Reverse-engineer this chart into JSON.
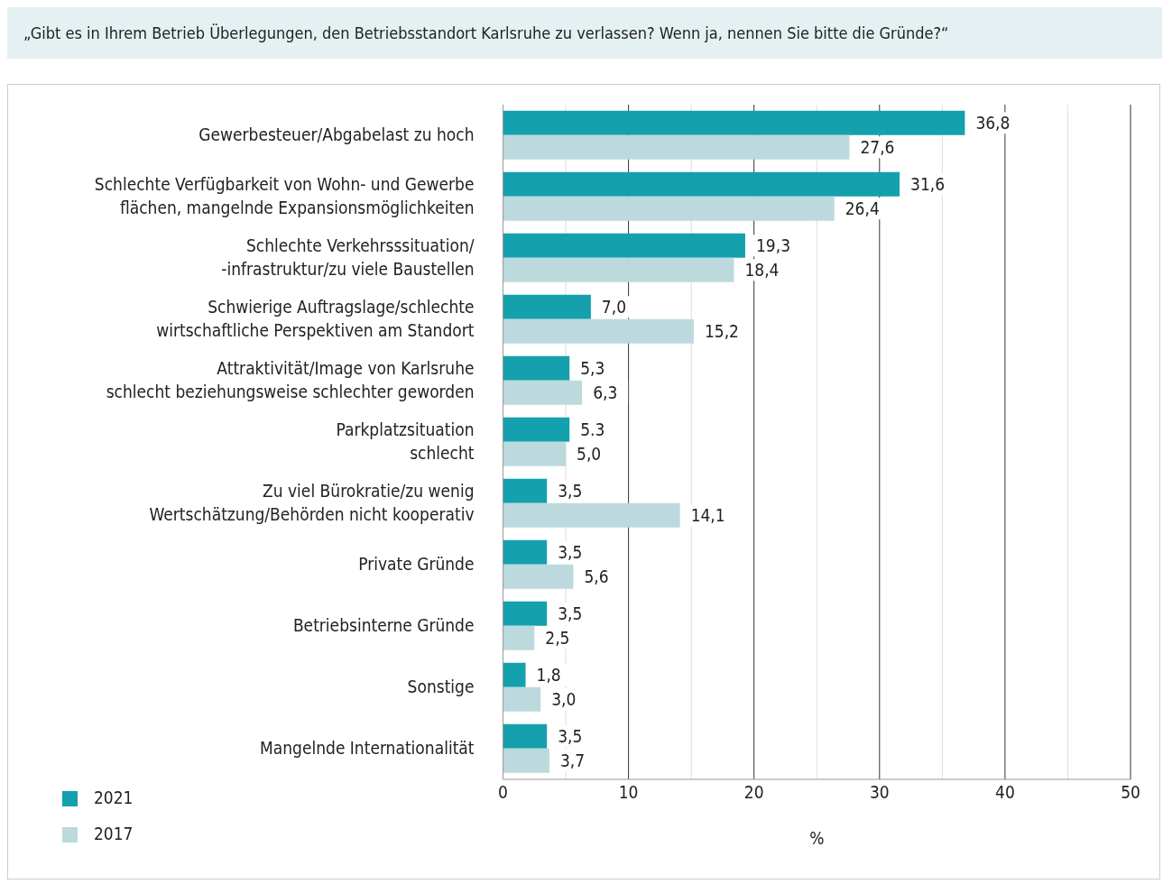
{
  "chart_data": {
    "type": "bar",
    "orientation": "horizontal",
    "title": "„Gibt es in Ihrem Betrieb Überlegungen, den Betriebsstandort Karlsruhe zu verlassen? Wenn ja, nennen Sie bitte die Gründe?“",
    "xlabel": "%",
    "categories": [
      "Gewerbesteuer/Abgabelast zu hoch",
      "Schlechte Verfügbarkeit von Wohn- und Gewerbe\nflächen, mangelnde  Expansionsmöglichkeiten",
      "Schlechte Verkehrsssituation/\n-infrastruktur/zu viele Baustellen",
      "Schwierige Auftragslage/schlechte\nwirtschaftliche Perspektiven am Standort",
      "Attraktivität/Image von Karlsruhe\nschlecht beziehungsweise schlechter geworden",
      "Parkplatzsituation\nschlecht",
      "Zu viel Bürokratie/zu wenig\nWertschätzung/Behörden nicht kooperativ",
      "Private Gründe",
      "Betriebsinterne Gründe",
      "Sonstige",
      "Mangelnde Internationalität"
    ],
    "series": [
      {
        "name": "2021",
        "color": "#14a0ad",
        "values": [
          36.8,
          31.6,
          19.3,
          7.0,
          5.3,
          5.3,
          3.5,
          3.5,
          3.5,
          1.8,
          3.5
        ],
        "value_labels": [
          "36,8",
          "31,6",
          "19,3",
          "7,0",
          "5,3",
          "5.3",
          "3,5",
          "3,5",
          "3,5",
          "1,8",
          "3,5"
        ]
      },
      {
        "name": "2017",
        "color": "#bcd9de",
        "values": [
          27.6,
          26.4,
          18.4,
          15.2,
          6.3,
          5.0,
          14.1,
          5.6,
          2.5,
          3.0,
          3.7
        ],
        "value_labels": [
          "27,6",
          "26,4",
          "18,4",
          "15,2",
          "6,3",
          "5,0",
          "14,1",
          "5,6",
          "2,5",
          "3,0",
          "3,7"
        ]
      }
    ],
    "xlim": [
      0,
      50
    ],
    "xticks": [
      0,
      {
        "value": 5,
        "label": null
      },
      10,
      {
        "value": 15,
        "label": null
      },
      20,
      {
        "value": 25,
        "label": null
      },
      30,
      {
        "value": 35,
        "label": null
      },
      40,
      {
        "value": 45,
        "label": null
      },
      50
    ],
    "grid": "x",
    "legend": "bottom left"
  }
}
